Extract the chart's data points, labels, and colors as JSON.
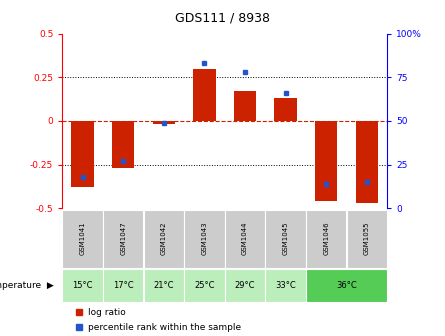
{
  "title": "GDS111 / 8938",
  "samples": [
    "GSM1041",
    "GSM1047",
    "GSM1042",
    "GSM1043",
    "GSM1044",
    "GSM1045",
    "GSM1046",
    "GSM1055"
  ],
  "temperatures": [
    "15°C",
    "17°C",
    "21°C",
    "25°C",
    "29°C",
    "33°C",
    "36°C",
    "36°C"
  ],
  "log_ratio": [
    -0.38,
    -0.27,
    -0.02,
    0.3,
    0.17,
    0.13,
    -0.46,
    -0.47
  ],
  "percentile_rank": [
    18,
    27,
    49,
    83,
    78,
    66,
    14,
    15
  ],
  "ylim_left": [
    -0.5,
    0.5
  ],
  "ylim_right": [
    0,
    100
  ],
  "bar_color": "#cc2200",
  "dot_color": "#2255cc",
  "zero_line_color": "#cc2200",
  "grid_color": "#000000",
  "sample_box_color": "#cccccc",
  "temp_box_color_light": "#bbeebb",
  "temp_box_color_dark": "#55cc55",
  "legend_dot_red": "#cc2200",
  "legend_dot_blue": "#2255cc",
  "yticks_left": [
    -0.5,
    -0.25,
    0,
    0.25,
    0.5
  ],
  "ytick_labels_left": [
    "-0.5",
    "-0.25",
    "0",
    "0.25",
    "0.5"
  ],
  "yticks_right": [
    0,
    25,
    50,
    75,
    100
  ],
  "ytick_labels_right": [
    "0",
    "25",
    "50",
    "75",
    "100%"
  ]
}
